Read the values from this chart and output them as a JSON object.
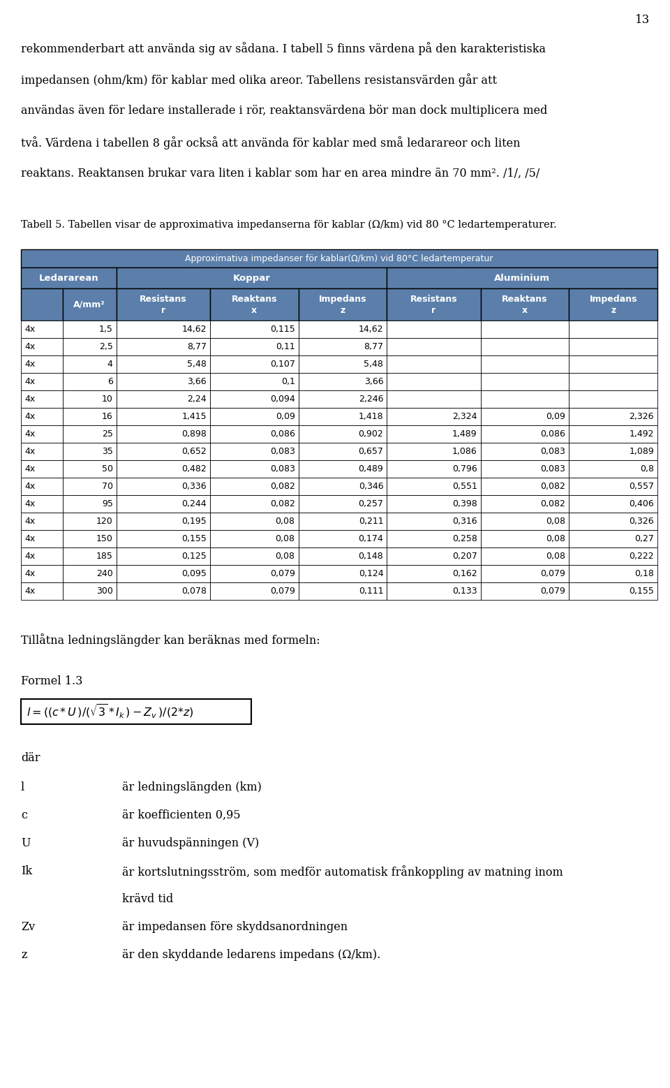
{
  "page_number": "13",
  "bg_color": "#ffffff",
  "text_color": "#000000",
  "paragraph1": "rekommenderbart att använda sig av sådana. I tabell 5 finns värdena på den karakteristiska",
  "paragraph2": "impedansen (ohm/km) för kablar med olika areor. Tabellens resistansvärden går att",
  "paragraph3": "användas även för ledare installerade i rör, reaktansvärdena bör man dock multiplicera med",
  "paragraph4": "två. Värdena i tabellen 8 går också att använda för kablar med små ledarareor och liten",
  "paragraph5": "reaktans. Reaktansen brukar vara liten i kablar som har en area mindre än 70 mm². /1/, /5/",
  "tabell_caption": "Tabell 5. Tabellen visar de approximativa impedanserna för kablar (Ω/km) vid 80 °C ledartemperaturer.",
  "table_header_bg": "#5b7faa",
  "table_header_text": "#ffffff",
  "table_border_color": "#000000",
  "table_title": "Approximativa impedanser för kablar(Ω/km) vid 80°C ledartemperatur",
  "table_data": [
    [
      "4x",
      "1,5",
      "14,62",
      "0,115",
      "14,62",
      "",
      "",
      ""
    ],
    [
      "4x",
      "2,5",
      "8,77",
      "0,11",
      "8,77",
      "",
      "",
      ""
    ],
    [
      "4x",
      "4",
      "5,48",
      "0,107",
      "5,48",
      "",
      "",
      ""
    ],
    [
      "4x",
      "6",
      "3,66",
      "0,1",
      "3,66",
      "",
      "",
      ""
    ],
    [
      "4x",
      "10",
      "2,24",
      "0,094",
      "2,246",
      "",
      "",
      ""
    ],
    [
      "4x",
      "16",
      "1,415",
      "0,09",
      "1,418",
      "2,324",
      "0,09",
      "2,326"
    ],
    [
      "4x",
      "25",
      "0,898",
      "0,086",
      "0,902",
      "1,489",
      "0,086",
      "1,492"
    ],
    [
      "4x",
      "35",
      "0,652",
      "0,083",
      "0,657",
      "1,086",
      "0,083",
      "1,089"
    ],
    [
      "4x",
      "50",
      "0,482",
      "0,083",
      "0,489",
      "0,796",
      "0,083",
      "0,8"
    ],
    [
      "4x",
      "70",
      "0,336",
      "0,082",
      "0,346",
      "0,551",
      "0,082",
      "0,557"
    ],
    [
      "4x",
      "95",
      "0,244",
      "0,082",
      "0,257",
      "0,398",
      "0,082",
      "0,406"
    ],
    [
      "4x",
      "120",
      "0,195",
      "0,08",
      "0,211",
      "0,316",
      "0,08",
      "0,326"
    ],
    [
      "4x",
      "150",
      "0,155",
      "0,08",
      "0,174",
      "0,258",
      "0,08",
      "0,27"
    ],
    [
      "4x",
      "185",
      "0,125",
      "0,08",
      "0,148",
      "0,207",
      "0,08",
      "0,222"
    ],
    [
      "4x",
      "240",
      "0,095",
      "0,079",
      "0,124",
      "0,162",
      "0,079",
      "0,18"
    ],
    [
      "4x",
      "300",
      "0,078",
      "0,079",
      "0,111",
      "0,133",
      "0,079",
      "0,155"
    ]
  ],
  "formula_title": "Formel 1.3",
  "dar_text": "där",
  "tilllatna_text": "Tillåtna ledningslängder kan beräknas med formeln:",
  "variables": [
    [
      "l",
      "är ledningslängden (km)",
      false
    ],
    [
      "c",
      "är koefficienten 0,95",
      false
    ],
    [
      "U",
      "är huvudspänningen (V)",
      false
    ],
    [
      "Ik",
      "är kortslutningsström, som medför automatisk frånkoppling av matning inom",
      true
    ],
    [
      "",
      "krävd tid",
      false
    ],
    [
      "Zv",
      "är impedansen före skyddsanordningen",
      false
    ],
    [
      "z",
      "är den skyddande ledarens impedans (Ω/km).",
      false
    ]
  ]
}
